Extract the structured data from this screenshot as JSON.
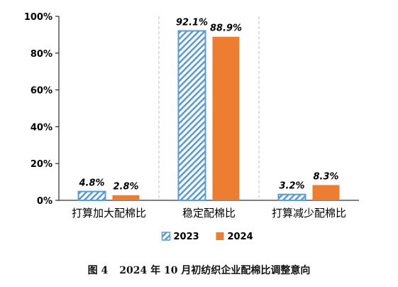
{
  "chart_data": {
    "type": "bar",
    "categories": [
      "打算加大配棉比",
      "稳定配棉比",
      "打算减少配棉比"
    ],
    "series": [
      {
        "name": "2023",
        "values": [
          4.8,
          92.1,
          3.2
        ],
        "labels": [
          "4.8%",
          "92.1%",
          "3.2%"
        ],
        "color": "#5b9bd5",
        "pattern": "diagonal-hatch"
      },
      {
        "name": "2024",
        "values": [
          2.8,
          88.9,
          8.3
        ],
        "labels": [
          "2.8%",
          "88.9%",
          "8.3%"
        ],
        "color": "#ed7d31",
        "pattern": "solid"
      }
    ],
    "yticks": [
      "0%",
      "20%",
      "40%",
      "60%",
      "80%",
      "100%"
    ],
    "ylim": [
      0,
      100
    ],
    "grid": "vertical-dashed-between-categories",
    "legend_position": "bottom-center",
    "title": "",
    "xlabel": "",
    "ylabel": ""
  },
  "caption": {
    "figure_label": "图 4",
    "text": "2024 年 10 月初纺织企业配棉比调整意向"
  }
}
